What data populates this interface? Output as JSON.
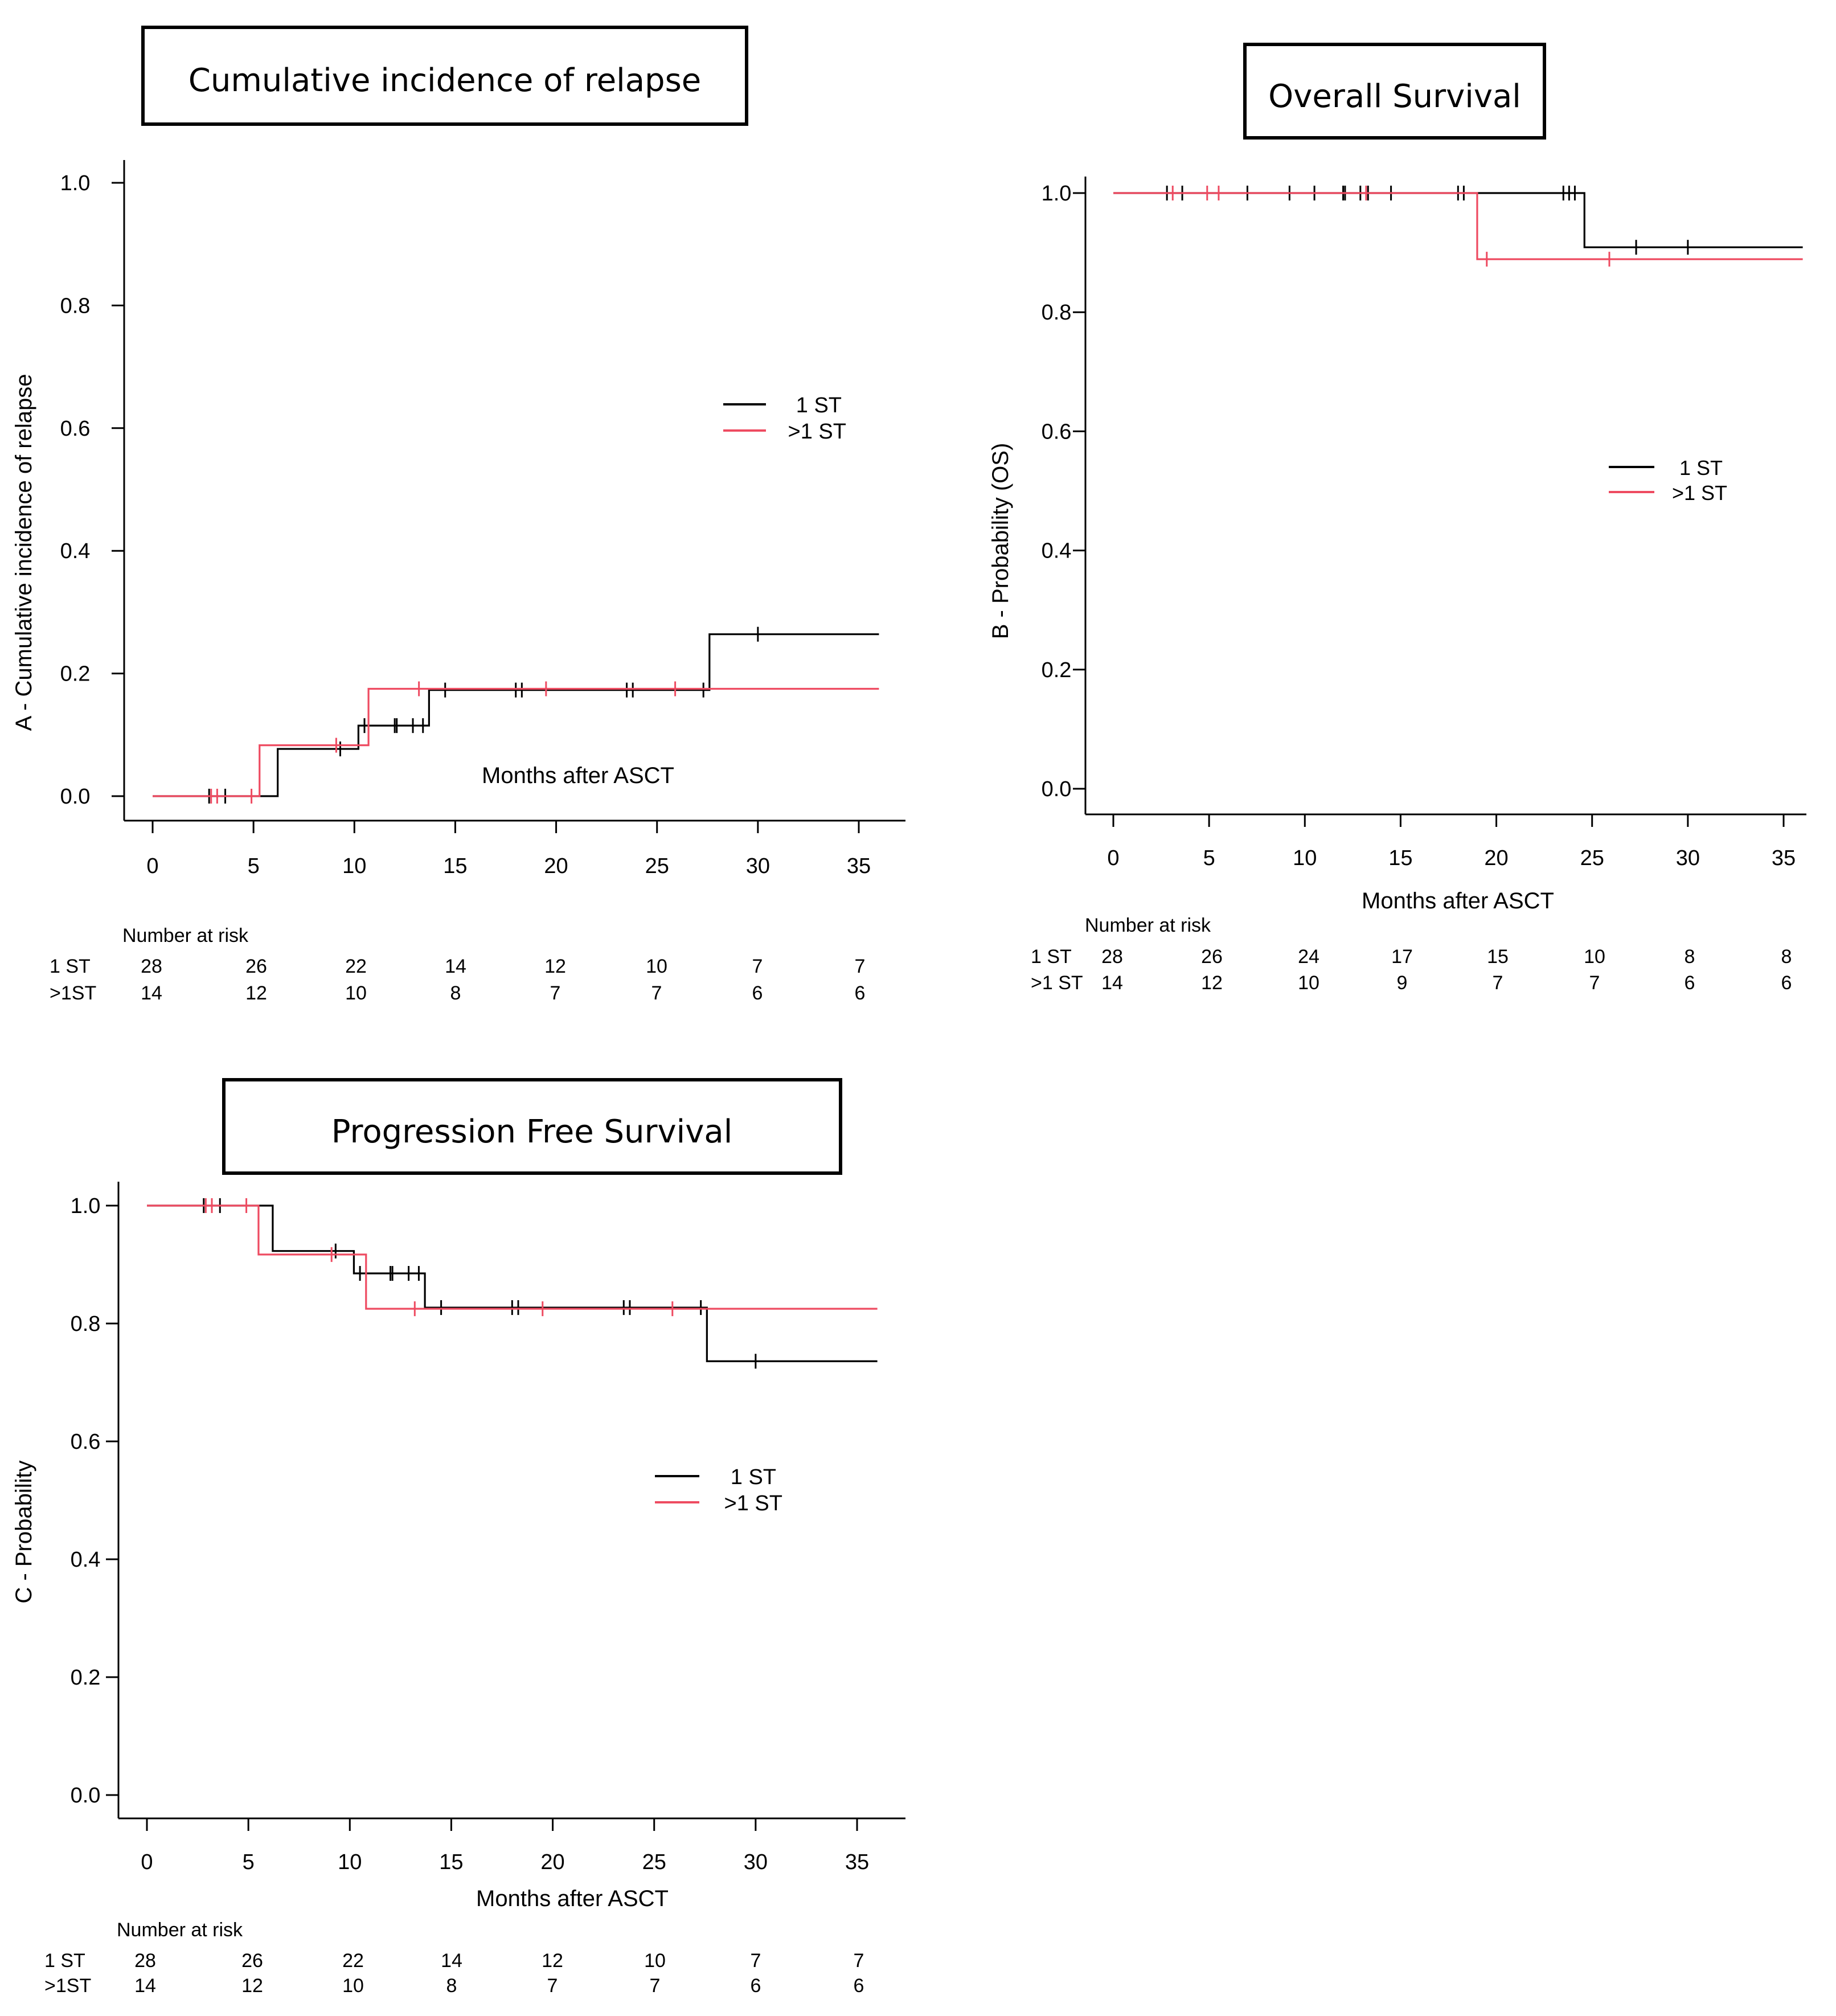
{
  "colors": {
    "group1": "#000000",
    "group2": "#ee4b61",
    "axis": "#000000"
  },
  "risk_table_title": "Number at risk",
  "chart_data": [
    {
      "id": "A",
      "type": "line",
      "step": true,
      "title": "Cumulative incidence of relapse",
      "xlabel": "Months after ASCT",
      "ylabel": "A - Cumulative incidence of relapse",
      "xlim": [
        0,
        36
      ],
      "ylim": [
        0,
        1
      ],
      "xticks": [
        0,
        5,
        10,
        15,
        20,
        25,
        30,
        35
      ],
      "yticks": [
        0.0,
        0.2,
        0.4,
        0.6,
        0.8,
        1.0
      ],
      "ytick_labels": [
        "0.0",
        "0.2",
        "0.4",
        "0.6",
        "0.8",
        "1.0"
      ],
      "grid": false,
      "legend_position": "right-middle",
      "series": [
        {
          "name": "1 ST",
          "color": "#000000",
          "x": [
            0,
            6.1,
            6.2,
            9.6,
            10.2,
            13.5,
            13.7,
            27.6,
            36
          ],
          "y": [
            0,
            0,
            0.077,
            0.077,
            0.115,
            0.115,
            0.173,
            0.264,
            0.264
          ],
          "censor_x": [
            2.8,
            3.6,
            9.3,
            10.5,
            12.0,
            12.1,
            12.9,
            13.4,
            14.5,
            18.0,
            18.3,
            23.5,
            23.8,
            27.3,
            30.0
          ],
          "censor_y": [
            0,
            0,
            0.077,
            0.115,
            0.115,
            0.115,
            0.115,
            0.115,
            0.173,
            0.173,
            0.173,
            0.173,
            0.173,
            0.173,
            0.264
          ]
        },
        {
          "name": ">1 ST",
          "color": "#ee4b61",
          "x": [
            0,
            5.3,
            10.7,
            36
          ],
          "y": [
            0,
            0.083,
            0.175,
            0.175
          ],
          "censor_x": [
            2.9,
            3.2,
            4.9,
            9.1,
            13.2,
            19.5,
            25.9
          ],
          "censor_y": [
            0,
            0,
            0,
            0.083,
            0.175,
            0.175,
            0.175
          ]
        }
      ],
      "risk_table": {
        "rows": [
          {
            "label": "1 ST",
            "values": [
              "28",
              "26",
              "22",
              "14",
              "12",
              "10",
              "7",
              "7"
            ]
          },
          {
            "label": ">1ST",
            "values": [
              "14",
              "12",
              "10",
              "8",
              "7",
              "7",
              "6",
              "6"
            ]
          }
        ]
      }
    },
    {
      "id": "B",
      "type": "line",
      "step": true,
      "title": "Overall Survival",
      "xlabel": "Months after ASCT",
      "ylabel": "B - Probability (OS)",
      "xlim": [
        0,
        36
      ],
      "ylim": [
        0,
        1
      ],
      "xticks": [
        0,
        5,
        10,
        15,
        20,
        25,
        30,
        35
      ],
      "yticks": [
        0.0,
        0.2,
        0.4,
        0.6,
        0.8,
        1.0
      ],
      "ytick_labels": [
        "0.0",
        "0.2",
        "0.4",
        "0.6",
        "0.8",
        "1.0"
      ],
      "grid": false,
      "legend_position": "right-middle",
      "series": [
        {
          "name": "1 ST",
          "color": "#000000",
          "x": [
            0,
            24.6,
            36
          ],
          "y": [
            1,
            0.909,
            0.909
          ],
          "censor_x": [
            2.8,
            3.6,
            7.0,
            9.2,
            10.5,
            12.0,
            12.1,
            12.9,
            13.3,
            14.5,
            18.0,
            18.3,
            23.5,
            23.8,
            24.1,
            27.3,
            30.0
          ],
          "censor_y": [
            1,
            1,
            1,
            1,
            1,
            1,
            1,
            1,
            1,
            1,
            1,
            1,
            1,
            1,
            1,
            0.909,
            0.909
          ]
        },
        {
          "name": ">1 ST",
          "color": "#ee4b61",
          "x": [
            0,
            19.0,
            36
          ],
          "y": [
            1,
            0.889,
            0.889
          ],
          "censor_x": [
            3.1,
            4.9,
            5.5,
            13.2,
            19.5,
            25.9
          ],
          "censor_y": [
            1,
            1,
            1,
            1,
            0.889,
            0.889
          ]
        }
      ],
      "risk_table": {
        "rows": [
          {
            "label": "1 ST",
            "values": [
              "28",
              "26",
              "24",
              "17",
              "15",
              "10",
              "8",
              "8"
            ]
          },
          {
            "label": ">1 ST",
            "values": [
              "14",
              "12",
              "10",
              "9",
              "7",
              "7",
              "6",
              "6"
            ]
          }
        ]
      }
    },
    {
      "id": "C",
      "type": "line",
      "step": true,
      "title": "Progression Free Survival",
      "xlabel": "Months after ASCT",
      "ylabel": "C - Probability",
      "xlim": [
        0,
        36
      ],
      "ylim": [
        0,
        1
      ],
      "xticks": [
        0,
        5,
        10,
        15,
        20,
        25,
        30,
        35
      ],
      "yticks": [
        0.0,
        0.2,
        0.4,
        0.6,
        0.8,
        1.0
      ],
      "ytick_labels": [
        "0.0",
        "0.2",
        "0.4",
        "0.6",
        "0.8",
        "1.0"
      ],
      "grid": false,
      "legend_position": "right-middle",
      "series": [
        {
          "name": "1 ST",
          "color": "#000000",
          "x": [
            0,
            6.1,
            6.2,
            9.8,
            10.2,
            13.5,
            13.7,
            27.6,
            36
          ],
          "y": [
            1,
            1,
            0.923,
            0.923,
            0.885,
            0.885,
            0.827,
            0.736,
            0.736
          ],
          "censor_x": [
            2.8,
            3.6,
            9.3,
            10.5,
            12.0,
            12.1,
            12.9,
            13.4,
            14.5,
            18.0,
            18.3,
            23.5,
            23.8,
            27.3,
            30.0
          ],
          "censor_y": [
            1,
            1,
            0.923,
            0.885,
            0.885,
            0.885,
            0.885,
            0.885,
            0.827,
            0.827,
            0.827,
            0.827,
            0.827,
            0.827,
            0.736
          ]
        },
        {
          "name": ">1 ST",
          "color": "#ee4b61",
          "x": [
            0,
            5.5,
            10.8,
            36
          ],
          "y": [
            1,
            0.917,
            0.825,
            0.825
          ],
          "censor_x": [
            2.9,
            3.2,
            4.9,
            9.1,
            13.2,
            19.5,
            25.9
          ],
          "censor_y": [
            1,
            1,
            1,
            0.917,
            0.825,
            0.825,
            0.825
          ]
        }
      ],
      "risk_table": {
        "rows": [
          {
            "label": "1 ST",
            "values": [
              "28",
              "26",
              "22",
              "14",
              "12",
              "10",
              "7",
              "7"
            ]
          },
          {
            "label": ">1ST",
            "values": [
              "14",
              "12",
              "10",
              "8",
              "7",
              "7",
              "6",
              "6"
            ]
          }
        ]
      }
    }
  ]
}
